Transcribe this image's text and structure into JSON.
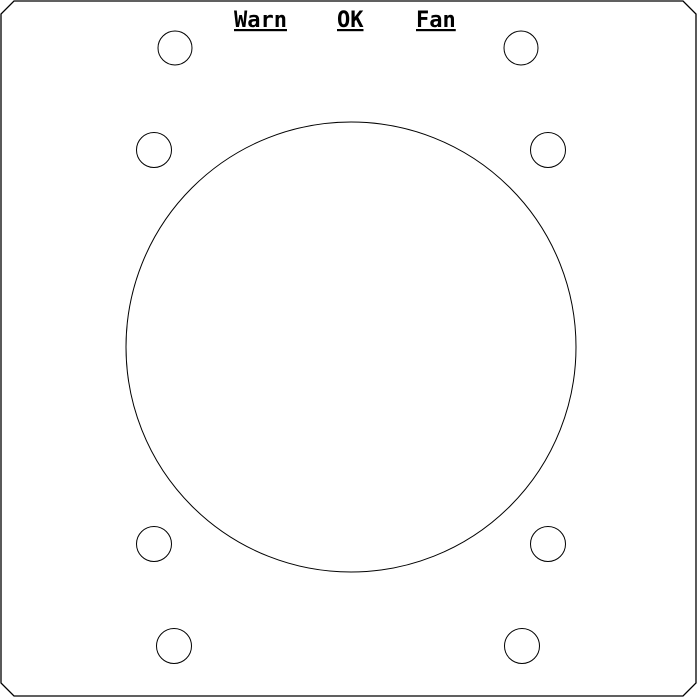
{
  "panel": {
    "labels": [
      {
        "id": "warn",
        "text": "Warn"
      },
      {
        "id": "ok",
        "text": "OK"
      },
      {
        "id": "fan",
        "text": "Fan"
      }
    ],
    "colors": {
      "stroke": "#000000",
      "background": "#ffffff"
    }
  }
}
